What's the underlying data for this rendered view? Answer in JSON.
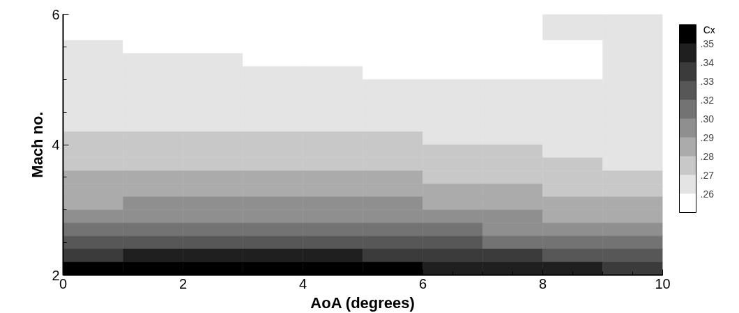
{
  "chart_data": {
    "type": "heatmap",
    "xlabel": "AoA (degrees)",
    "ylabel": "Mach no.",
    "clabel": "Cx",
    "xlim": [
      0,
      10
    ],
    "xticks": [
      0,
      2,
      4,
      6,
      8,
      10
    ],
    "ylim": [
      2,
      6
    ],
    "yticks": [
      2,
      4,
      6
    ],
    "grid": false,
    "clim": [
      0.24875,
      0.36125
    ],
    "cticks": [
      {
        "value": 0.26,
        "label": ".26"
      },
      {
        "value": 0.27125,
        "label": ".27"
      },
      {
        "value": 0.2825,
        "label": ".28"
      },
      {
        "value": 0.29375,
        "label": ".29"
      },
      {
        "value": 0.305,
        "label": ".30"
      },
      {
        "value": 0.31625,
        "label": ".32"
      },
      {
        "value": 0.3275,
        "label": ".33"
      },
      {
        "value": 0.33875,
        "label": ".34"
      },
      {
        "value": 0.35,
        "label": ".35"
      }
    ],
    "colors": [
      "#ffffff",
      "#e4e4e4",
      "#c8c8c8",
      "#ababab",
      "#8f8f8f",
      "#737373",
      "#575757",
      "#3b3b3b",
      "#1f1f1f",
      "#000000"
    ],
    "cells": [
      [
        0.254,
        0.254,
        0.254,
        0.254,
        0.254,
        0.254,
        0.254,
        0.254,
        0.266,
        0.266
      ],
      [
        0.254,
        0.254,
        0.254,
        0.254,
        0.254,
        0.254,
        0.254,
        0.254,
        0.266,
        0.266
      ],
      [
        0.266,
        0.254,
        0.254,
        0.254,
        0.254,
        0.254,
        0.254,
        0.254,
        0.254,
        0.266
      ],
      [
        0.266,
        0.266,
        0.266,
        0.254,
        0.254,
        0.254,
        0.254,
        0.254,
        0.254,
        0.266
      ],
      [
        0.266,
        0.266,
        0.266,
        0.266,
        0.266,
        0.254,
        0.254,
        0.254,
        0.254,
        0.266
      ],
      [
        0.266,
        0.266,
        0.266,
        0.266,
        0.266,
        0.266,
        0.266,
        0.266,
        0.266,
        0.266
      ],
      [
        0.266,
        0.266,
        0.266,
        0.266,
        0.266,
        0.266,
        0.266,
        0.266,
        0.266,
        0.266
      ],
      [
        0.266,
        0.266,
        0.266,
        0.266,
        0.266,
        0.266,
        0.266,
        0.266,
        0.266,
        0.266
      ],
      [
        0.266,
        0.266,
        0.266,
        0.266,
        0.266,
        0.266,
        0.266,
        0.266,
        0.266,
        0.266
      ],
      [
        0.277,
        0.277,
        0.277,
        0.277,
        0.277,
        0.277,
        0.266,
        0.266,
        0.266,
        0.266
      ],
      [
        0.277,
        0.277,
        0.277,
        0.277,
        0.277,
        0.277,
        0.277,
        0.277,
        0.266,
        0.266
      ],
      [
        0.277,
        0.277,
        0.277,
        0.277,
        0.277,
        0.277,
        0.277,
        0.277,
        0.277,
        0.266
      ],
      [
        0.288,
        0.288,
        0.288,
        0.288,
        0.288,
        0.288,
        0.277,
        0.277,
        0.277,
        0.277
      ],
      [
        0.288,
        0.288,
        0.288,
        0.288,
        0.288,
        0.288,
        0.288,
        0.288,
        0.277,
        0.277
      ],
      [
        0.288,
        0.299,
        0.299,
        0.299,
        0.299,
        0.299,
        0.288,
        0.288,
        0.288,
        0.288
      ],
      [
        0.299,
        0.299,
        0.299,
        0.299,
        0.299,
        0.299,
        0.299,
        0.299,
        0.288,
        0.288
      ],
      [
        0.311,
        0.311,
        0.311,
        0.311,
        0.311,
        0.311,
        0.311,
        0.299,
        0.299,
        0.299
      ],
      [
        0.322,
        0.322,
        0.322,
        0.322,
        0.322,
        0.322,
        0.322,
        0.311,
        0.311,
        0.311
      ],
      [
        0.333,
        0.344,
        0.344,
        0.344,
        0.344,
        0.333,
        0.333,
        0.333,
        0.322,
        0.322
      ],
      [
        0.356,
        0.356,
        0.356,
        0.356,
        0.356,
        0.356,
        0.344,
        0.344,
        0.344,
        0.333
      ]
    ]
  }
}
